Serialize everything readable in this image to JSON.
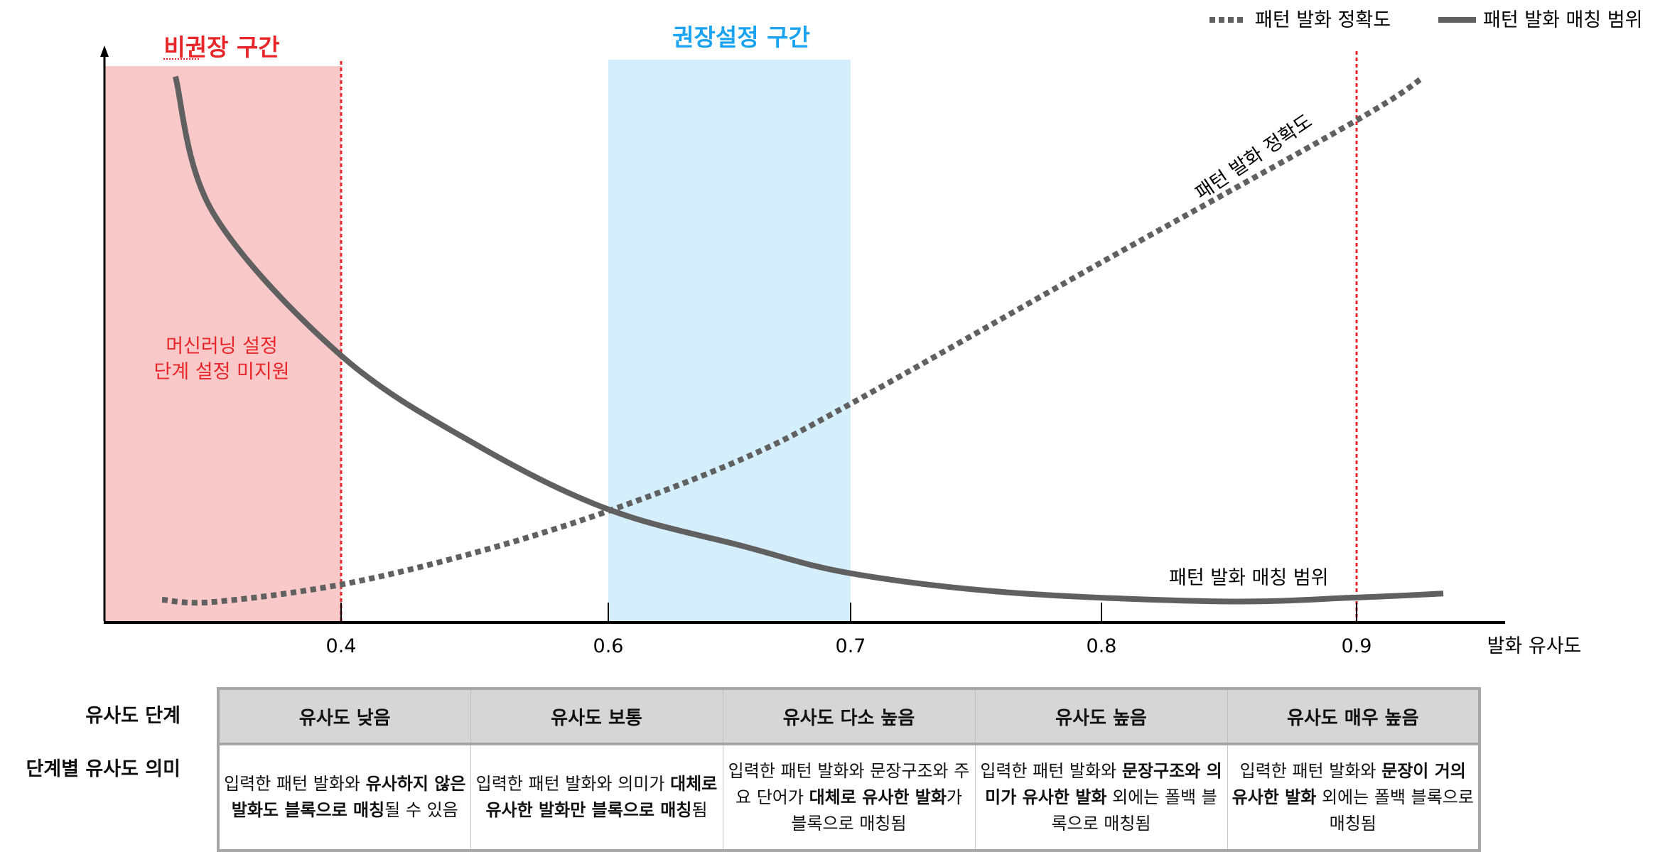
{
  "legend": {
    "accuracy": "패턴 발화 정확도",
    "matching": "패턴 발화 매칭 범위"
  },
  "zones": {
    "not_recommended": "비권장 구간",
    "recommended": "권장설정 구간",
    "not_recommended_note_1": "머신러닝 설정",
    "not_recommended_note_2": "단계 설정 미지원"
  },
  "colors": {
    "not_recommended_fill": "#f9c9c9",
    "recommended_fill": "#d4eefc",
    "not_recommended_text": "#e8262a",
    "recommended_text": "#1aa3f0",
    "threshold_line": "#e8262a",
    "curve": "#606060"
  },
  "chart_data": {
    "type": "line",
    "xlabel": "발화 유사도",
    "ylabel": "",
    "x_ticks": [
      0.4,
      0.6,
      0.7,
      0.8,
      0.9
    ],
    "x_tick_labels": [
      "0.4",
      "0.6",
      "0.7",
      "0.8",
      "0.9"
    ],
    "ylim": [
      0,
      100
    ],
    "y_unit": "relative",
    "not_recommended_range": [
      0.25,
      0.4
    ],
    "recommended_range": [
      0.6,
      0.7
    ],
    "threshold_lines": [
      0.4,
      0.9
    ],
    "series": [
      {
        "name": "패턴 발화 정확도",
        "style": "dotted",
        "label": "패턴 발화 정확도",
        "x": [
          0.266,
          0.304,
          0.4,
          0.502,
          0.6,
          0.656,
          0.7,
          0.8,
          0.9,
          0.926
        ],
        "y": [
          3.8,
          3.4,
          6.5,
          12.3,
          19.6,
          29,
          38.7,
          63.9,
          89.2,
          96.8
        ]
      },
      {
        "name": "패턴 발화 매칭 범위",
        "style": "solid",
        "label": "패턴 발화 매칭 범위",
        "x": [
          0.276,
          0.304,
          0.4,
          0.502,
          0.6,
          0.656,
          0.7,
          0.763,
          0.847,
          0.9,
          0.934
        ],
        "y": [
          97,
          72.8,
          47.3,
          31.3,
          19.9,
          13.3,
          8.5,
          5.1,
          3.5,
          4.2,
          4.9
        ]
      }
    ]
  },
  "table": {
    "row_label_level": "유사도 단계",
    "row_label_meaning": "단계별 유사도 의미",
    "levels": [
      "유사도 낮음",
      "유사도 보통",
      "유사도 다소 높음",
      "유사도 높음",
      "유사도 매우 높음"
    ],
    "meanings": [
      [
        {
          "t": "입력한 패턴 발화와 ",
          "b": false
        },
        {
          "t": "유사하지 않은 발화도 블록으로 매칭",
          "b": true
        },
        {
          "t": "될 수 있음",
          "b": false
        }
      ],
      [
        {
          "t": "입력한 패턴 발화와 의미가 ",
          "b": false
        },
        {
          "t": "대체로 유사한 발화만 블록으로 매칭",
          "b": true
        },
        {
          "t": "됨",
          "b": false
        }
      ],
      [
        {
          "t": "입력한 패턴 발화와 문장구조와 주요 단어가 ",
          "b": false
        },
        {
          "t": "대체로 유사한 발화",
          "b": true
        },
        {
          "t": "가 블록으로 매칭됨",
          "b": false
        }
      ],
      [
        {
          "t": "입력한 패턴 발화와 ",
          "b": false
        },
        {
          "t": "문장구조와 의미가 유사한 발화",
          "b": true
        },
        {
          "t": " 외에는 폴백 블록으로 매칭됨",
          "b": false
        }
      ],
      [
        {
          "t": "입력한 패턴 발화와 ",
          "b": false
        },
        {
          "t": "문장이 거의 유사한 발화",
          "b": true
        },
        {
          "t": " 외에는 폴백 블록으로 매칭됨",
          "b": false
        }
      ]
    ]
  }
}
